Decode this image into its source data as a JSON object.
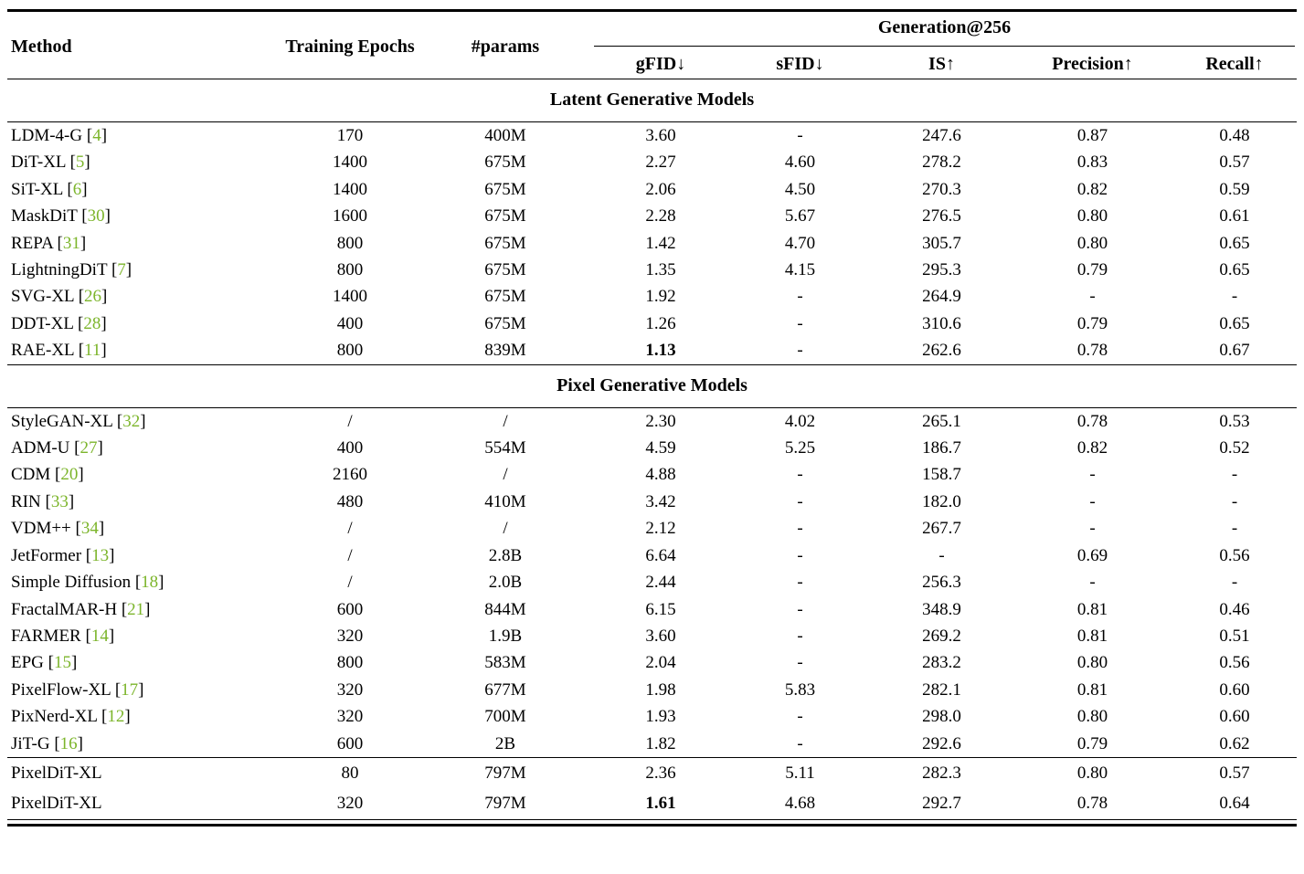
{
  "colors": {
    "citation_green": "#7cb52b"
  },
  "header": {
    "method": "Method",
    "epochs": "Training Epochs",
    "params": "#params",
    "generation": "Generation@256",
    "metrics": [
      "gFID↓",
      "sFID↓",
      "IS↑",
      "Precision↑",
      "Recall↑"
    ]
  },
  "sections": [
    {
      "title": "Latent Generative Models",
      "rows": [
        {
          "method": "LDM-4-G",
          "cite": "4",
          "epochs": "170",
          "params": "400M",
          "gfid": "3.60",
          "sfid": "-",
          "is": "247.6",
          "precision": "0.87",
          "recall": "0.48",
          "bold": []
        },
        {
          "method": "DiT-XL",
          "cite": "5",
          "epochs": "1400",
          "params": "675M",
          "gfid": "2.27",
          "sfid": "4.60",
          "is": "278.2",
          "precision": "0.83",
          "recall": "0.57",
          "bold": []
        },
        {
          "method": "SiT-XL",
          "cite": "6",
          "epochs": "1400",
          "params": "675M",
          "gfid": "2.06",
          "sfid": "4.50",
          "is": "270.3",
          "precision": "0.82",
          "recall": "0.59",
          "bold": []
        },
        {
          "method": "MaskDiT",
          "cite": "30",
          "epochs": "1600",
          "params": "675M",
          "gfid": "2.28",
          "sfid": "5.67",
          "is": "276.5",
          "precision": "0.80",
          "recall": "0.61",
          "bold": []
        },
        {
          "method": "REPA",
          "cite": "31",
          "epochs": "800",
          "params": "675M",
          "gfid": "1.42",
          "sfid": "4.70",
          "is": "305.7",
          "precision": "0.80",
          "recall": "0.65",
          "bold": []
        },
        {
          "method": "LightningDiT",
          "cite": "7",
          "epochs": "800",
          "params": "675M",
          "gfid": "1.35",
          "sfid": "4.15",
          "is": "295.3",
          "precision": "0.79",
          "recall": "0.65",
          "bold": []
        },
        {
          "method": "SVG-XL",
          "cite": "26",
          "epochs": "1400",
          "params": "675M",
          "gfid": "1.92",
          "sfid": "-",
          "is": "264.9",
          "precision": "-",
          "recall": "-",
          "bold": []
        },
        {
          "method": "DDT-XL",
          "cite": "28",
          "epochs": "400",
          "params": "675M",
          "gfid": "1.26",
          "sfid": "-",
          "is": "310.6",
          "precision": "0.79",
          "recall": "0.65",
          "bold": []
        },
        {
          "method": "RAE-XL",
          "cite": "11",
          "epochs": "800",
          "params": "839M",
          "gfid": "1.13",
          "sfid": "-",
          "is": "262.6",
          "precision": "0.78",
          "recall": "0.67",
          "bold": [
            "gfid"
          ]
        }
      ]
    },
    {
      "title": "Pixel Generative Models",
      "rows": [
        {
          "method": "StyleGAN-XL",
          "cite": "32",
          "epochs": "/",
          "params": "/",
          "gfid": "2.30",
          "sfid": "4.02",
          "is": "265.1",
          "precision": "0.78",
          "recall": "0.53",
          "bold": []
        },
        {
          "method": "ADM-U",
          "cite": "27",
          "epochs": "400",
          "params": "554M",
          "gfid": "4.59",
          "sfid": "5.25",
          "is": "186.7",
          "precision": "0.82",
          "recall": "0.52",
          "bold": []
        },
        {
          "method": "CDM",
          "cite": "20",
          "epochs": "2160",
          "params": "/",
          "gfid": "4.88",
          "sfid": "-",
          "is": "158.7",
          "precision": "-",
          "recall": "-",
          "bold": []
        },
        {
          "method": "RIN",
          "cite": "33",
          "epochs": "480",
          "params": "410M",
          "gfid": "3.42",
          "sfid": "-",
          "is": "182.0",
          "precision": "-",
          "recall": "-",
          "bold": []
        },
        {
          "method": "VDM++",
          "cite": "34",
          "epochs": "/",
          "params": "/",
          "gfid": "2.12",
          "sfid": "-",
          "is": "267.7",
          "precision": "-",
          "recall": "-",
          "bold": []
        },
        {
          "method": "JetFormer",
          "cite": "13",
          "epochs": "/",
          "params": "2.8B",
          "gfid": "6.64",
          "sfid": "-",
          "is": "-",
          "precision": "0.69",
          "recall": "0.56",
          "bold": []
        },
        {
          "method": "Simple Diffusion",
          "cite": "18",
          "epochs": "/",
          "params": "2.0B",
          "gfid": "2.44",
          "sfid": "-",
          "is": "256.3",
          "precision": "-",
          "recall": "-",
          "bold": []
        },
        {
          "method": "FractalMAR-H",
          "cite": "21",
          "epochs": "600",
          "params": "844M",
          "gfid": "6.15",
          "sfid": "-",
          "is": "348.9",
          "precision": "0.81",
          "recall": "0.46",
          "bold": []
        },
        {
          "method": "FARMER",
          "cite": "14",
          "epochs": "320",
          "params": "1.9B",
          "gfid": "3.60",
          "sfid": "-",
          "is": "269.2",
          "precision": "0.81",
          "recall": "0.51",
          "bold": []
        },
        {
          "method": "EPG",
          "cite": "15",
          "epochs": "800",
          "params": "583M",
          "gfid": "2.04",
          "sfid": "-",
          "is": "283.2",
          "precision": "0.80",
          "recall": "0.56",
          "bold": []
        },
        {
          "method": "PixelFlow-XL",
          "cite": "17",
          "epochs": "320",
          "params": "677M",
          "gfid": "1.98",
          "sfid": "5.83",
          "is": "282.1",
          "precision": "0.81",
          "recall": "0.60",
          "bold": []
        },
        {
          "method": "PixNerd-XL",
          "cite": "12",
          "epochs": "320",
          "params": "700M",
          "gfid": "1.93",
          "sfid": "-",
          "is": "298.0",
          "precision": "0.80",
          "recall": "0.60",
          "bold": []
        },
        {
          "method": "JiT-G",
          "cite": "16",
          "epochs": "600",
          "params": "2B",
          "gfid": "1.82",
          "sfid": "-",
          "is": "292.6",
          "precision": "0.79",
          "recall": "0.62",
          "bold": []
        }
      ]
    },
    {
      "title": null,
      "rows": [
        {
          "method": "PixelDiT-XL",
          "cite": null,
          "epochs": "80",
          "params": "797M",
          "gfid": "2.36",
          "sfid": "5.11",
          "is": "282.3",
          "precision": "0.80",
          "recall": "0.57",
          "bold": []
        },
        {
          "method": "PixelDiT-XL",
          "cite": null,
          "epochs": "320",
          "params": "797M",
          "gfid": "1.61",
          "sfid": "4.68",
          "is": "292.7",
          "precision": "0.78",
          "recall": "0.64",
          "bold": [
            "gfid"
          ]
        }
      ]
    }
  ]
}
